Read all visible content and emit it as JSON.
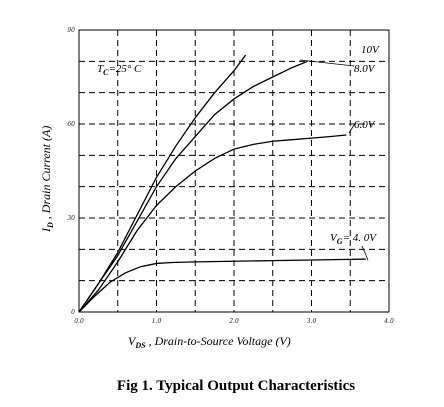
{
  "chart_data": {
    "type": "line",
    "xlabel_main": "V",
    "xlabel_sub": "DS",
    "xlabel_rest": " , Drain-to-Source Voltage (V)",
    "ylabel_main": "I",
    "ylabel_sub": "D",
    "ylabel_rest": " , Drain Current (A)",
    "xlim": [
      0,
      4.0
    ],
    "ylim": [
      0,
      90
    ],
    "x_ticks": [
      0,
      1.0,
      2.0,
      3.0,
      4.0
    ],
    "x_tick_labels": [
      "0.0",
      "1.0",
      "2.0",
      "3.0",
      "4.0"
    ],
    "y_ticks": [
      0,
      30,
      60,
      90
    ],
    "y_tick_labels": [
      "0",
      "30",
      "60",
      "90"
    ],
    "grid_x": [
      0.5,
      1.0,
      1.5,
      2.0,
      2.5,
      3.0,
      3.5
    ],
    "grid_y": [
      10,
      20,
      30,
      40,
      50,
      60,
      70,
      80
    ],
    "grid": true,
    "annotation": {
      "main": "T",
      "sub": "C",
      "rest": "=25° C"
    },
    "series": [
      {
        "name": "10V",
        "label_main": "10V",
        "x": [
          0,
          0.25,
          0.5,
          0.75,
          1.0,
          1.25,
          1.5,
          1.75,
          2.0,
          2.15
        ],
        "y": [
          0,
          9,
          19,
          31,
          43,
          53,
          62,
          70,
          77,
          82
        ]
      },
      {
        "name": "8.0V",
        "label_main": "8.0V",
        "x": [
          0,
          0.25,
          0.5,
          0.75,
          1.0,
          1.25,
          1.5,
          1.75,
          2.0,
          2.25,
          2.5,
          2.75,
          2.95
        ],
        "y": [
          0,
          9,
          18,
          29,
          40,
          49,
          56,
          63,
          68,
          72,
          75,
          78,
          80
        ]
      },
      {
        "name": "6.0V",
        "label_main": "6.0V",
        "x": [
          0,
          0.25,
          0.5,
          0.75,
          1.0,
          1.25,
          1.5,
          1.75,
          2.0,
          2.25,
          2.5,
          2.75,
          3.0,
          3.25,
          3.45
        ],
        "y": [
          0,
          7,
          16,
          26,
          34,
          40,
          45,
          49,
          52,
          53.5,
          54.5,
          55,
          55.5,
          56,
          56.5
        ]
      },
      {
        "name": "VG=4.0V",
        "label_main": "V",
        "label_sub": "G",
        "label_rest": "= 4. 0V",
        "x": [
          0,
          0.2,
          0.4,
          0.6,
          0.8,
          1.0,
          1.2,
          1.5,
          2.0,
          2.5,
          3.0,
          3.5,
          3.7
        ],
        "y": [
          0,
          5,
          9.5,
          12.5,
          14.5,
          15.5,
          15.8,
          16,
          16.2,
          16.4,
          16.6,
          16.8,
          16.9
        ]
      }
    ]
  },
  "caption": "Fig 1. Typical Output Characteristics"
}
